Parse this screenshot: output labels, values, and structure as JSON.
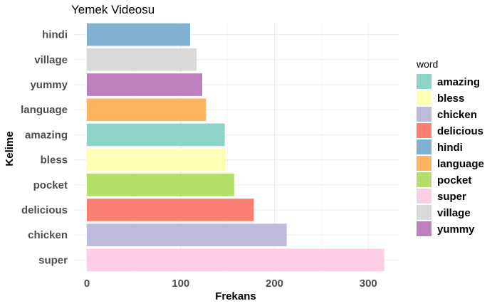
{
  "chart_data": {
    "type": "bar",
    "orientation": "horizontal",
    "title": "Yemek Videosu",
    "xlabel": "Frekans",
    "ylabel": "Kelime",
    "xlim": [
      0,
      320
    ],
    "x_ticks": [
      0,
      100,
      200,
      300
    ],
    "categories": [
      "super",
      "chicken",
      "delicious",
      "pocket",
      "bless",
      "amazing",
      "language",
      "yummy",
      "village",
      "hindi"
    ],
    "values": [
      317,
      213,
      178,
      157,
      148,
      147,
      127,
      123,
      117,
      110
    ],
    "grid": true,
    "legend": {
      "title": "word",
      "placement": "right",
      "entries": [
        "amazing",
        "bless",
        "chicken",
        "delicious",
        "hindi",
        "language",
        "pocket",
        "super",
        "village",
        "yummy"
      ]
    },
    "colors": {
      "amazing": "#8DD3C7",
      "bless": "#FFFFB3",
      "chicken": "#BEBADA",
      "delicious": "#FB8072",
      "hindi": "#80B1D3",
      "language": "#FDB462",
      "pocket": "#B3DE69",
      "super": "#FCCDE5",
      "village": "#D9D9D9",
      "yummy": "#BC80BD"
    }
  }
}
